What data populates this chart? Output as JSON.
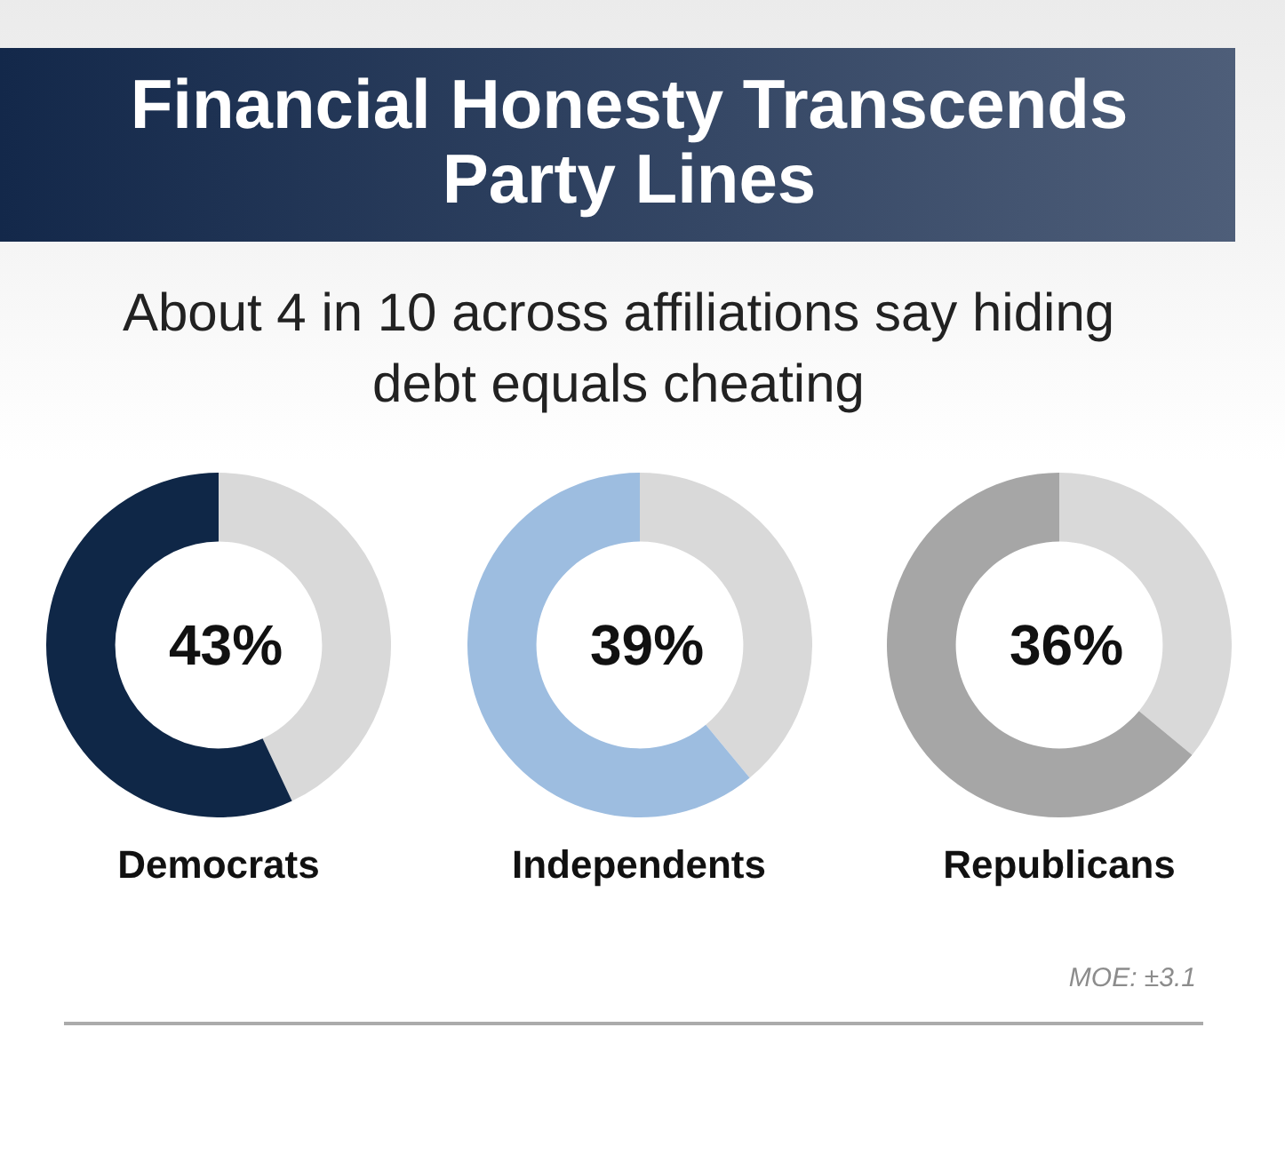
{
  "chart_data": [
    {
      "type": "other",
      "title": "Financial Honesty Transcends Party Lines",
      "subtitle": "About 4 in 10 across affiliations say hiding debt equals cheating"
    },
    {
      "type": "donut",
      "title": "Democrats",
      "categories": [
        null,
        null
      ],
      "values": [
        43,
        57
      ],
      "colors": [
        "#d9d9d9",
        "#0f2747"
      ],
      "value_labels": [
        "43%",
        null
      ]
    },
    {
      "type": "donut",
      "title": "Independents",
      "categories": [
        null,
        null
      ],
      "values": [
        39,
        61
      ],
      "colors": [
        "#d9d9d9",
        "#9dbde0"
      ],
      "value_labels": [
        "39%",
        null
      ]
    },
    {
      "type": "donut",
      "title": "Republicans",
      "categories": [
        null,
        null
      ],
      "values": [
        36,
        64
      ],
      "colors": [
        "#d9d9d9",
        "#a6a6a6"
      ],
      "value_labels": [
        "36%",
        null
      ]
    },
    {
      "type": "other",
      "annotations": [
        "MOE: ±3.1"
      ]
    }
  ]
}
